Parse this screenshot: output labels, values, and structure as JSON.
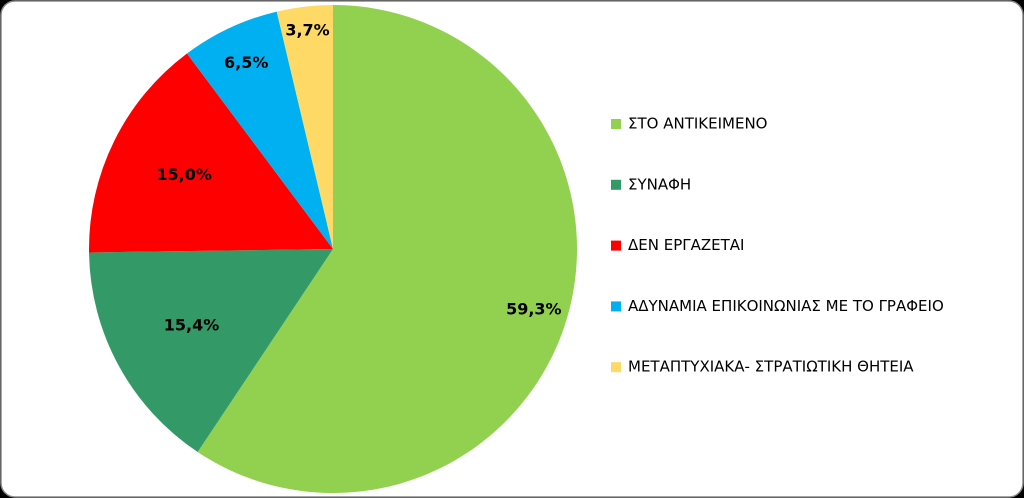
{
  "chart_data": {
    "type": "pie",
    "categories": [
      "ΣΤΟ ΑΝΤΙΚΕΙΜΕΝΟ",
      "ΣΥΝΑΦΗ",
      "ΔΕΝ ΕΡΓΑΖΕΤΑΙ",
      "ΑΔΥΝΑΜΙΑ ΕΠΙΚΟΙΝΩΝΙΑΣ ΜΕ ΤΟ ΓΡΑΦΕΙΟ",
      "ΜΕΤΑΠΤΥΧΙΑΚΑ- ΣΤΡΑΤΙΩΤΙΚΗ ΘΗΤΕΙΑ"
    ],
    "values": [
      59.3,
      15.4,
      15.0,
      6.5,
      3.7
    ],
    "value_labels": [
      "59,3%",
      "15,4%",
      "15,0%",
      "6,5%",
      "3,7%"
    ],
    "colors": [
      "#92d050",
      "#339966",
      "#ff0000",
      "#00b0f0",
      "#ffd966"
    ],
    "legend": "right"
  }
}
